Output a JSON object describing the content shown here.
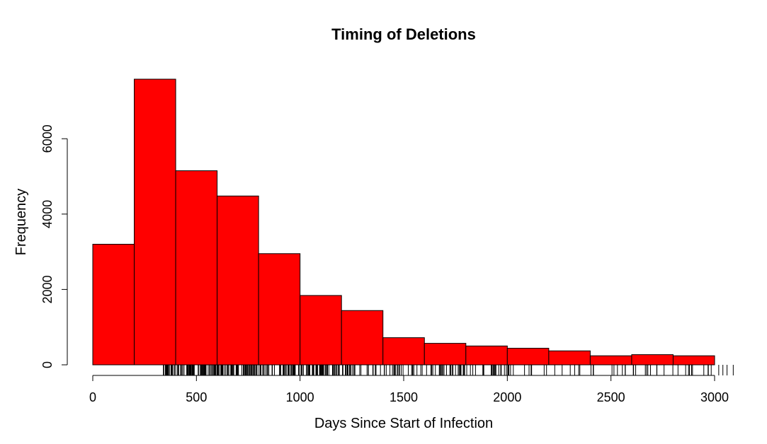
{
  "chart_data": {
    "type": "bar",
    "title": "Timing of Deletions",
    "xlabel": "Days Since Start of Infection",
    "ylabel": "Frequency",
    "bin_edges": [
      0,
      200,
      400,
      600,
      800,
      1000,
      1200,
      1400,
      1600,
      1800,
      2000,
      2200,
      2400,
      2600,
      2800,
      3000
    ],
    "values": [
      3200,
      7580,
      5150,
      4480,
      2950,
      1840,
      1440,
      720,
      570,
      500,
      440,
      370,
      240,
      270,
      240
    ],
    "xlim": [
      0,
      3000
    ],
    "ylim": [
      0,
      7580
    ],
    "x_ticks": [
      0,
      500,
      1000,
      1500,
      2000,
      2500,
      3000
    ],
    "y_ticks": [
      0,
      2000,
      4000,
      6000
    ],
    "bar_color": "#ff0000",
    "grid": false,
    "legend": "none",
    "rug": true
  }
}
